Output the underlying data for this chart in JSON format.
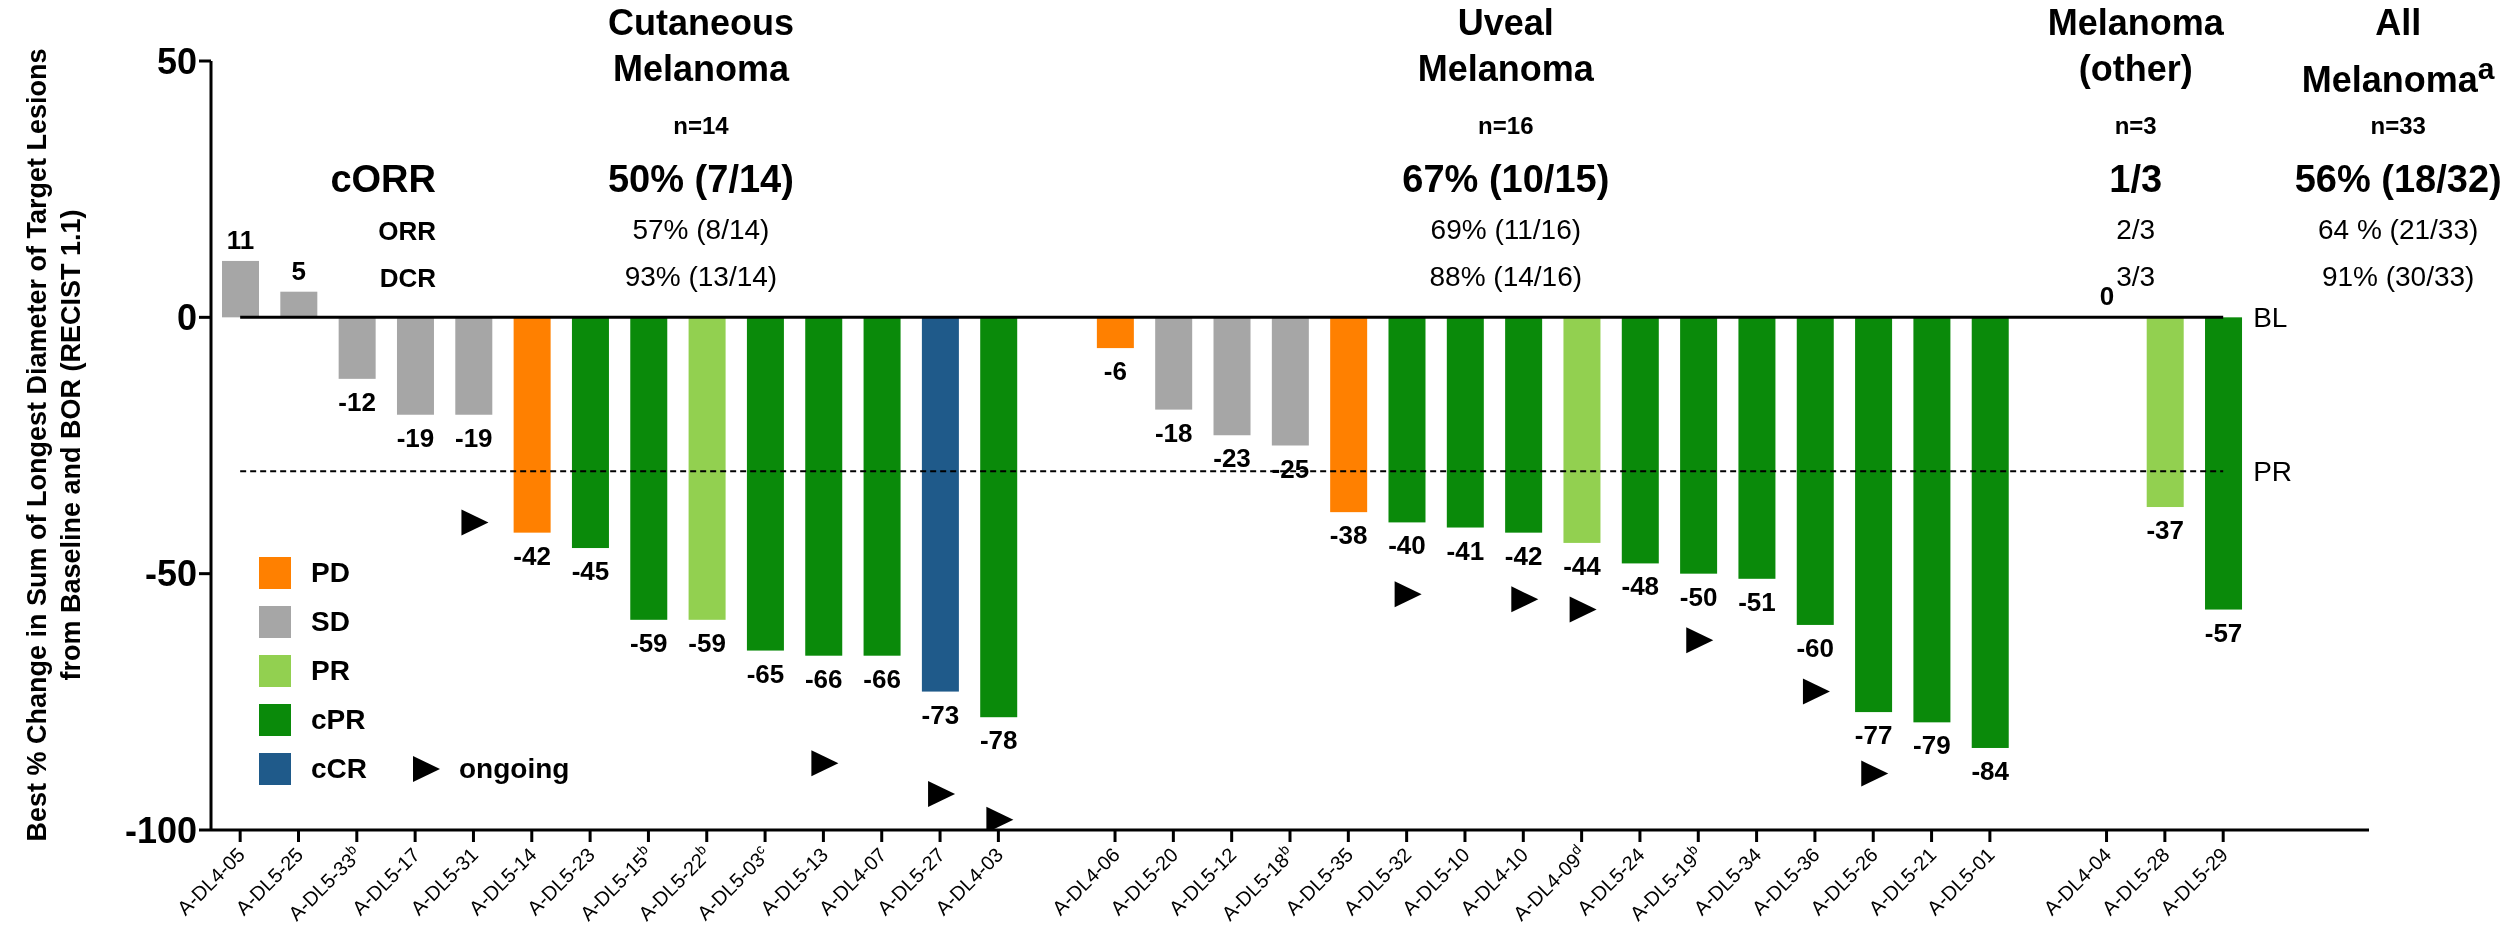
{
  "chart_data": {
    "type": "bar",
    "ylabel": "Best % Change in Sum of Longest Diameter of Target Lesions from Baseline and BOR (RECIST 1.1)",
    "categories": [
      "A-DL4-05",
      "A-DL5-25",
      "A-DL5-33$^{b}$",
      "A-DL5-17",
      "A-DL5-31",
      "A-DL5-14",
      "A-DL5-23",
      "A-DL5-15$^{b}$",
      "A-DL5-22$^{b}$",
      "A-DL5-03$^{c}$",
      "A-DL5-13",
      "A-DL4-07",
      "A-DL5-27",
      "A-DL4-03",
      null,
      "A-DL4-06",
      "A-DL5-20",
      "A-DL5-12",
      "A-DL5-18$^{b}$",
      "A-DL5-35",
      "A-DL5-32",
      "A-DL5-10",
      "A-DL4-10",
      "A-DL4-09$^{d}$",
      "A-DL5-24",
      "A-DL5-19$^{b}$",
      "A-DL5-34",
      "A-DL5-36",
      "A-DL5-26",
      "A-DL5-21",
      "A-DL5-01",
      null,
      "A-DL4-04",
      "A-DL5-28",
      "A-DL5-29",
      null,
      null
    ],
    "series": [
      {
        "name": "PD",
        "color": "#ff8000",
        "values": [
          null,
          null,
          null,
          null,
          null,
          -42,
          null,
          null,
          null,
          null,
          null,
          null,
          null,
          null,
          null,
          -6,
          null,
          null,
          null,
          -38,
          null,
          null,
          null,
          null,
          null,
          null,
          null,
          null,
          null,
          null,
          null,
          null,
          null,
          null,
          null,
          null,
          null
        ]
      },
      {
        "name": "SD",
        "color": "#a6a6a6",
        "values": [
          11,
          5,
          -12,
          -19,
          -19,
          null,
          null,
          null,
          null,
          null,
          null,
          null,
          null,
          null,
          null,
          null,
          -18,
          -23,
          -25,
          null,
          null,
          null,
          null,
          null,
          null,
          null,
          null,
          null,
          null,
          null,
          null,
          null,
          0,
          null,
          null,
          null,
          null
        ]
      },
      {
        "name": "PR",
        "color": "#92d050",
        "values": [
          null,
          null,
          null,
          null,
          null,
          null,
          null,
          null,
          -59,
          null,
          null,
          null,
          null,
          null,
          null,
          null,
          null,
          null,
          null,
          null,
          null,
          null,
          null,
          -44,
          null,
          null,
          null,
          null,
          null,
          null,
          null,
          null,
          null,
          -37,
          null,
          null,
          null
        ]
      },
      {
        "name": "cPR",
        "color": "#0a8a0a",
        "values": [
          null,
          null,
          null,
          null,
          null,
          null,
          -45,
          -59,
          null,
          -65,
          -66,
          -66,
          null,
          -78,
          null,
          null,
          null,
          null,
          null,
          null,
          -40,
          -41,
          -42,
          null,
          -48,
          -50,
          -51,
          -60,
          -77,
          -79,
          -84,
          null,
          null,
          null,
          -57,
          null,
          null
        ]
      },
      {
        "name": "cCR",
        "color": "#1f5a8a",
        "values": [
          null,
          null,
          null,
          null,
          null,
          null,
          null,
          null,
          null,
          null,
          null,
          null,
          -73,
          null,
          null,
          null,
          null,
          null,
          null,
          null,
          null,
          null,
          null,
          null,
          null,
          null,
          null,
          null,
          null,
          null,
          null,
          null,
          null,
          null,
          null,
          null,
          null
        ]
      },
      {
        "name": "ongoing",
        "type": "scatter",
        "marker": "triangle",
        "color": "#000000",
        "values": [
          null,
          null,
          null,
          null,
          -40,
          null,
          null,
          null,
          null,
          null,
          -87,
          null,
          -93,
          -98,
          null,
          null,
          null,
          null,
          null,
          null,
          -54,
          null,
          -55,
          -57,
          null,
          -63,
          null,
          -73,
          -89,
          null,
          null,
          null,
          null,
          null,
          null,
          null,
          null
        ],
        "value_labels": [
          null,
          null,
          null,
          null,
          null,
          null,
          null,
          null,
          null,
          null,
          null,
          null,
          null,
          null,
          null,
          null,
          null,
          null,
          null,
          null,
          null,
          null,
          null,
          null,
          null,
          null,
          null,
          null,
          null,
          null,
          null,
          null,
          null,
          null,
          null,
          null,
          null
        ]
      }
    ],
    "stacked": true,
    "data_labels": true,
    "legend": "bottom left",
    "ylim": [
      -100,
      50
    ],
    "yticks": [
      -100,
      -50,
      0,
      50
    ],
    "ref_lines": [
      {
        "axis": "y",
        "value": 0,
        "label": "BL",
        "color": "#000000",
        "line_style": "solid"
      },
      {
        "axis": "y",
        "value": -30,
        "label": "PR",
        "color": "#000000",
        "line_style": "dashed"
      }
    ],
    "annotations": [
      "Cutaneous Melanoma",
      "n=14",
      "50% (7/14)",
      "57% (8/14)",
      "93% (13/14)",
      "Uveal Melanoma",
      "n=16",
      "67% (10/15)",
      "69% (11/16)",
      "88% (14/16)",
      "Melanoma (other)",
      "n=3",
      "1/3",
      "2/3",
      "3/3",
      "All Melanoma$^{a}$",
      "n=33",
      "56% (18/32)",
      "64 % (21/33)",
      "91% (30/33)",
      "cORR",
      "ORR",
      "DCR"
    ]
  }
}
